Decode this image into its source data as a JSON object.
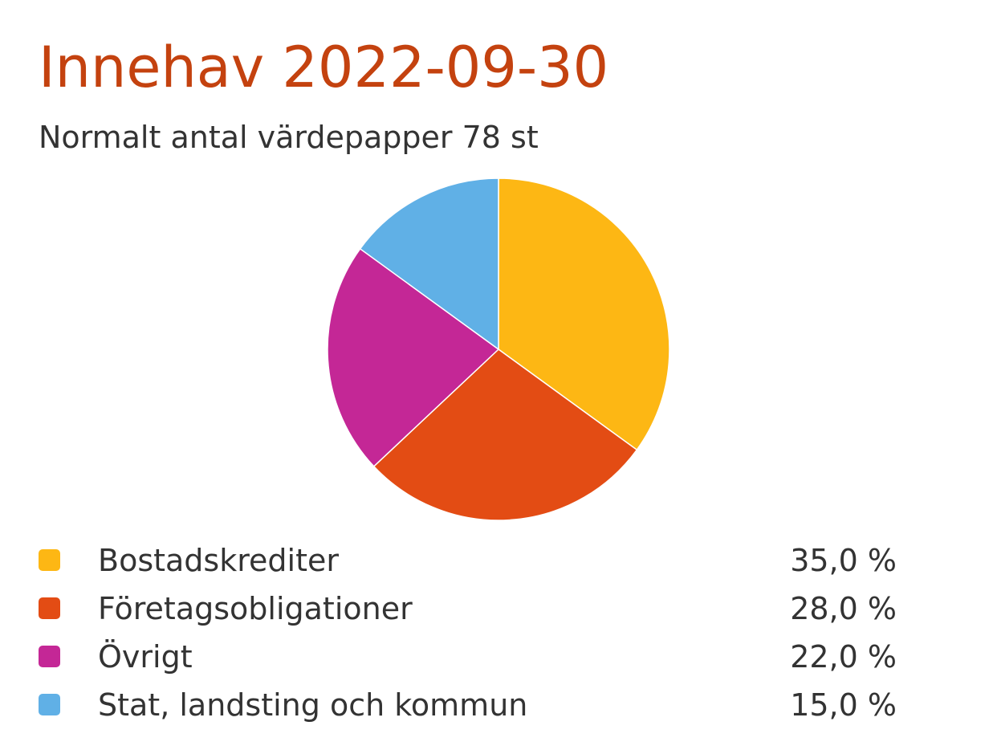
{
  "chart_data": {
    "type": "pie",
    "title": "Innehav 2022-09-30",
    "subtitle": "Normalt antal värdepapper 78 st",
    "categories": [
      "Bostadskrediter",
      "Företagsobligationer",
      "Övrigt",
      "Stat, landsting och kommun"
    ],
    "values": [
      35,
      28,
      22,
      15
    ],
    "value_labels": [
      "35,0 %",
      "28,0 %",
      "22,0 %",
      "15,0 %"
    ],
    "colors": [
      "#fdb714",
      "#e34c14",
      "#c42796",
      "#60b0e6"
    ]
  }
}
